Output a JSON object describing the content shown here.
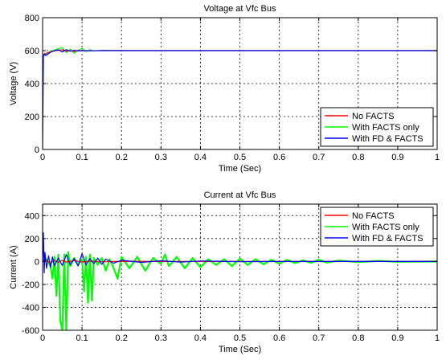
{
  "colors": {
    "No FACTS": "#ff0000",
    "With FACTS only": "#00ff00",
    "With FD & FACTS": "#0000ff"
  },
  "chart_data": [
    {
      "type": "line",
      "title": "Voltage at Vfc Bus",
      "xlabel": "Time (Sec)",
      "ylabel": "Voltage (V)",
      "xlim": [
        0,
        1
      ],
      "ylim": [
        0,
        800
      ],
      "xticks": [
        "0",
        "0.1",
        "0.2",
        "0.3",
        "0.4",
        "0.5",
        "0.6",
        "0.7",
        "0.8",
        "0.9",
        "1"
      ],
      "yticks": [
        "0",
        "200",
        "400",
        "600",
        "800"
      ],
      "grid": true,
      "legend_position": "bottom-right",
      "series": [
        {
          "name": "No FACTS",
          "color": "#ff0000",
          "x": [
            0,
            0.005,
            0.01,
            0.02,
            0.03,
            0.04,
            0.05,
            0.06,
            0.07,
            0.08,
            0.09,
            0.1,
            0.11,
            0.12,
            0.15,
            0.2,
            0.3,
            0.5,
            0.7,
            1.0
          ],
          "y": [
            580,
            575,
            585,
            592,
            598,
            602,
            606,
            596,
            600,
            594,
            602,
            598,
            600,
            599,
            600,
            600,
            600,
            600,
            600,
            600
          ]
        },
        {
          "name": "With FACTS only",
          "color": "#00ff00",
          "x": [
            0,
            0.005,
            0.01,
            0.02,
            0.03,
            0.04,
            0.05,
            0.06,
            0.07,
            0.08,
            0.09,
            0.1,
            0.11,
            0.12,
            0.13,
            0.15,
            0.2,
            0.3,
            0.5,
            0.7,
            1.0
          ],
          "y": [
            580,
            572,
            580,
            596,
            604,
            612,
            618,
            588,
            610,
            584,
            602,
            614,
            594,
            606,
            598,
            602,
            600,
            600,
            600,
            600,
            600
          ]
        },
        {
          "name": "With FD & FACTS",
          "color": "#0000ff",
          "x": [
            0,
            0.002,
            0.005,
            0.008,
            0.012,
            0.02,
            0.03,
            0.04,
            0.05,
            0.06,
            0.07,
            0.08,
            0.09,
            0.1,
            0.12,
            0.15,
            0.2,
            0.3,
            0.5,
            0.7,
            1.0
          ],
          "y": [
            0,
            565,
            582,
            570,
            576,
            590,
            600,
            605,
            592,
            606,
            596,
            602,
            598,
            600,
            599,
            600,
            600,
            600,
            600,
            600,
            600
          ]
        }
      ]
    },
    {
      "type": "line",
      "title": "Current at Vfc Bus",
      "xlabel": "Time (Sec)",
      "ylabel": "Current (A)",
      "xlim": [
        0,
        1
      ],
      "ylim": [
        -600,
        500
      ],
      "xticks": [
        "0",
        "0.1",
        "0.2",
        "0.3",
        "0.4",
        "0.5",
        "0.6",
        "0.7",
        "0.8",
        "0.9",
        "1"
      ],
      "yticks": [
        "-600",
        "-400",
        "-200",
        "0",
        "200",
        "400"
      ],
      "grid": true,
      "legend_position": "top-right",
      "series": [
        {
          "name": "No FACTS",
          "color": "#ff0000",
          "x": [
            0,
            0.01,
            0.02,
            0.03,
            0.04,
            0.05,
            0.06,
            0.08,
            0.1,
            0.12,
            0.15,
            0.2,
            0.3,
            1.0
          ],
          "y": [
            0,
            10,
            -15,
            12,
            -8,
            10,
            -6,
            8,
            -5,
            4,
            -3,
            2,
            0,
            0
          ]
        },
        {
          "name": "With FACTS only",
          "color": "#00ff00",
          "x": [
            0,
            0.01,
            0.02,
            0.025,
            0.03,
            0.035,
            0.04,
            0.045,
            0.05,
            0.055,
            0.06,
            0.065,
            0.07,
            0.08,
            0.09,
            0.1,
            0.105,
            0.11,
            0.115,
            0.12,
            0.125,
            0.13,
            0.14,
            0.15,
            0.16,
            0.17,
            0.18,
            0.19,
            0.2,
            0.22,
            0.24,
            0.26,
            0.28,
            0.3,
            0.31,
            0.32,
            0.34,
            0.36,
            0.38,
            0.4,
            0.42,
            0.44,
            0.46,
            0.48,
            0.5,
            0.52,
            0.54,
            0.56,
            0.58,
            0.6,
            0.62,
            0.64,
            0.66,
            0.68,
            0.7,
            0.72,
            0.75,
            0.8,
            0.85,
            0.9,
            1.0
          ],
          "y": [
            0,
            20,
            -40,
            -150,
            40,
            -300,
            60,
            -520,
            -600,
            60,
            -600,
            80,
            -40,
            30,
            -30,
            20,
            -260,
            40,
            -360,
            60,
            -340,
            30,
            -30,
            30,
            -80,
            20,
            -60,
            -150,
            40,
            -60,
            40,
            -80,
            30,
            -20,
            60,
            -40,
            40,
            -60,
            30,
            -50,
            20,
            -30,
            20,
            -40,
            25,
            -30,
            20,
            -25,
            15,
            -20,
            15,
            -15,
            10,
            -12,
            15,
            -10,
            8,
            -6,
            5,
            -3,
            0
          ]
        },
        {
          "name": "With FD & FACTS",
          "color": "#0000ff",
          "x": [
            0,
            0.002,
            0.004,
            0.006,
            0.01,
            0.015,
            0.02,
            0.025,
            0.03,
            0.04,
            0.05,
            0.06,
            0.07,
            0.08,
            0.09,
            0.1,
            0.11,
            0.12,
            0.13,
            0.14,
            0.15,
            0.16,
            0.18,
            0.2,
            0.25,
            0.3,
            0.35,
            0.4,
            0.5,
            0.6,
            1.0
          ],
          "y": [
            0,
            250,
            -100,
            80,
            -60,
            50,
            -50,
            40,
            -40,
            30,
            -35,
            60,
            -30,
            25,
            -40,
            70,
            -30,
            25,
            -20,
            30,
            -25,
            20,
            -15,
            10,
            -8,
            6,
            -5,
            4,
            -2,
            0,
            0
          ]
        }
      ]
    }
  ]
}
